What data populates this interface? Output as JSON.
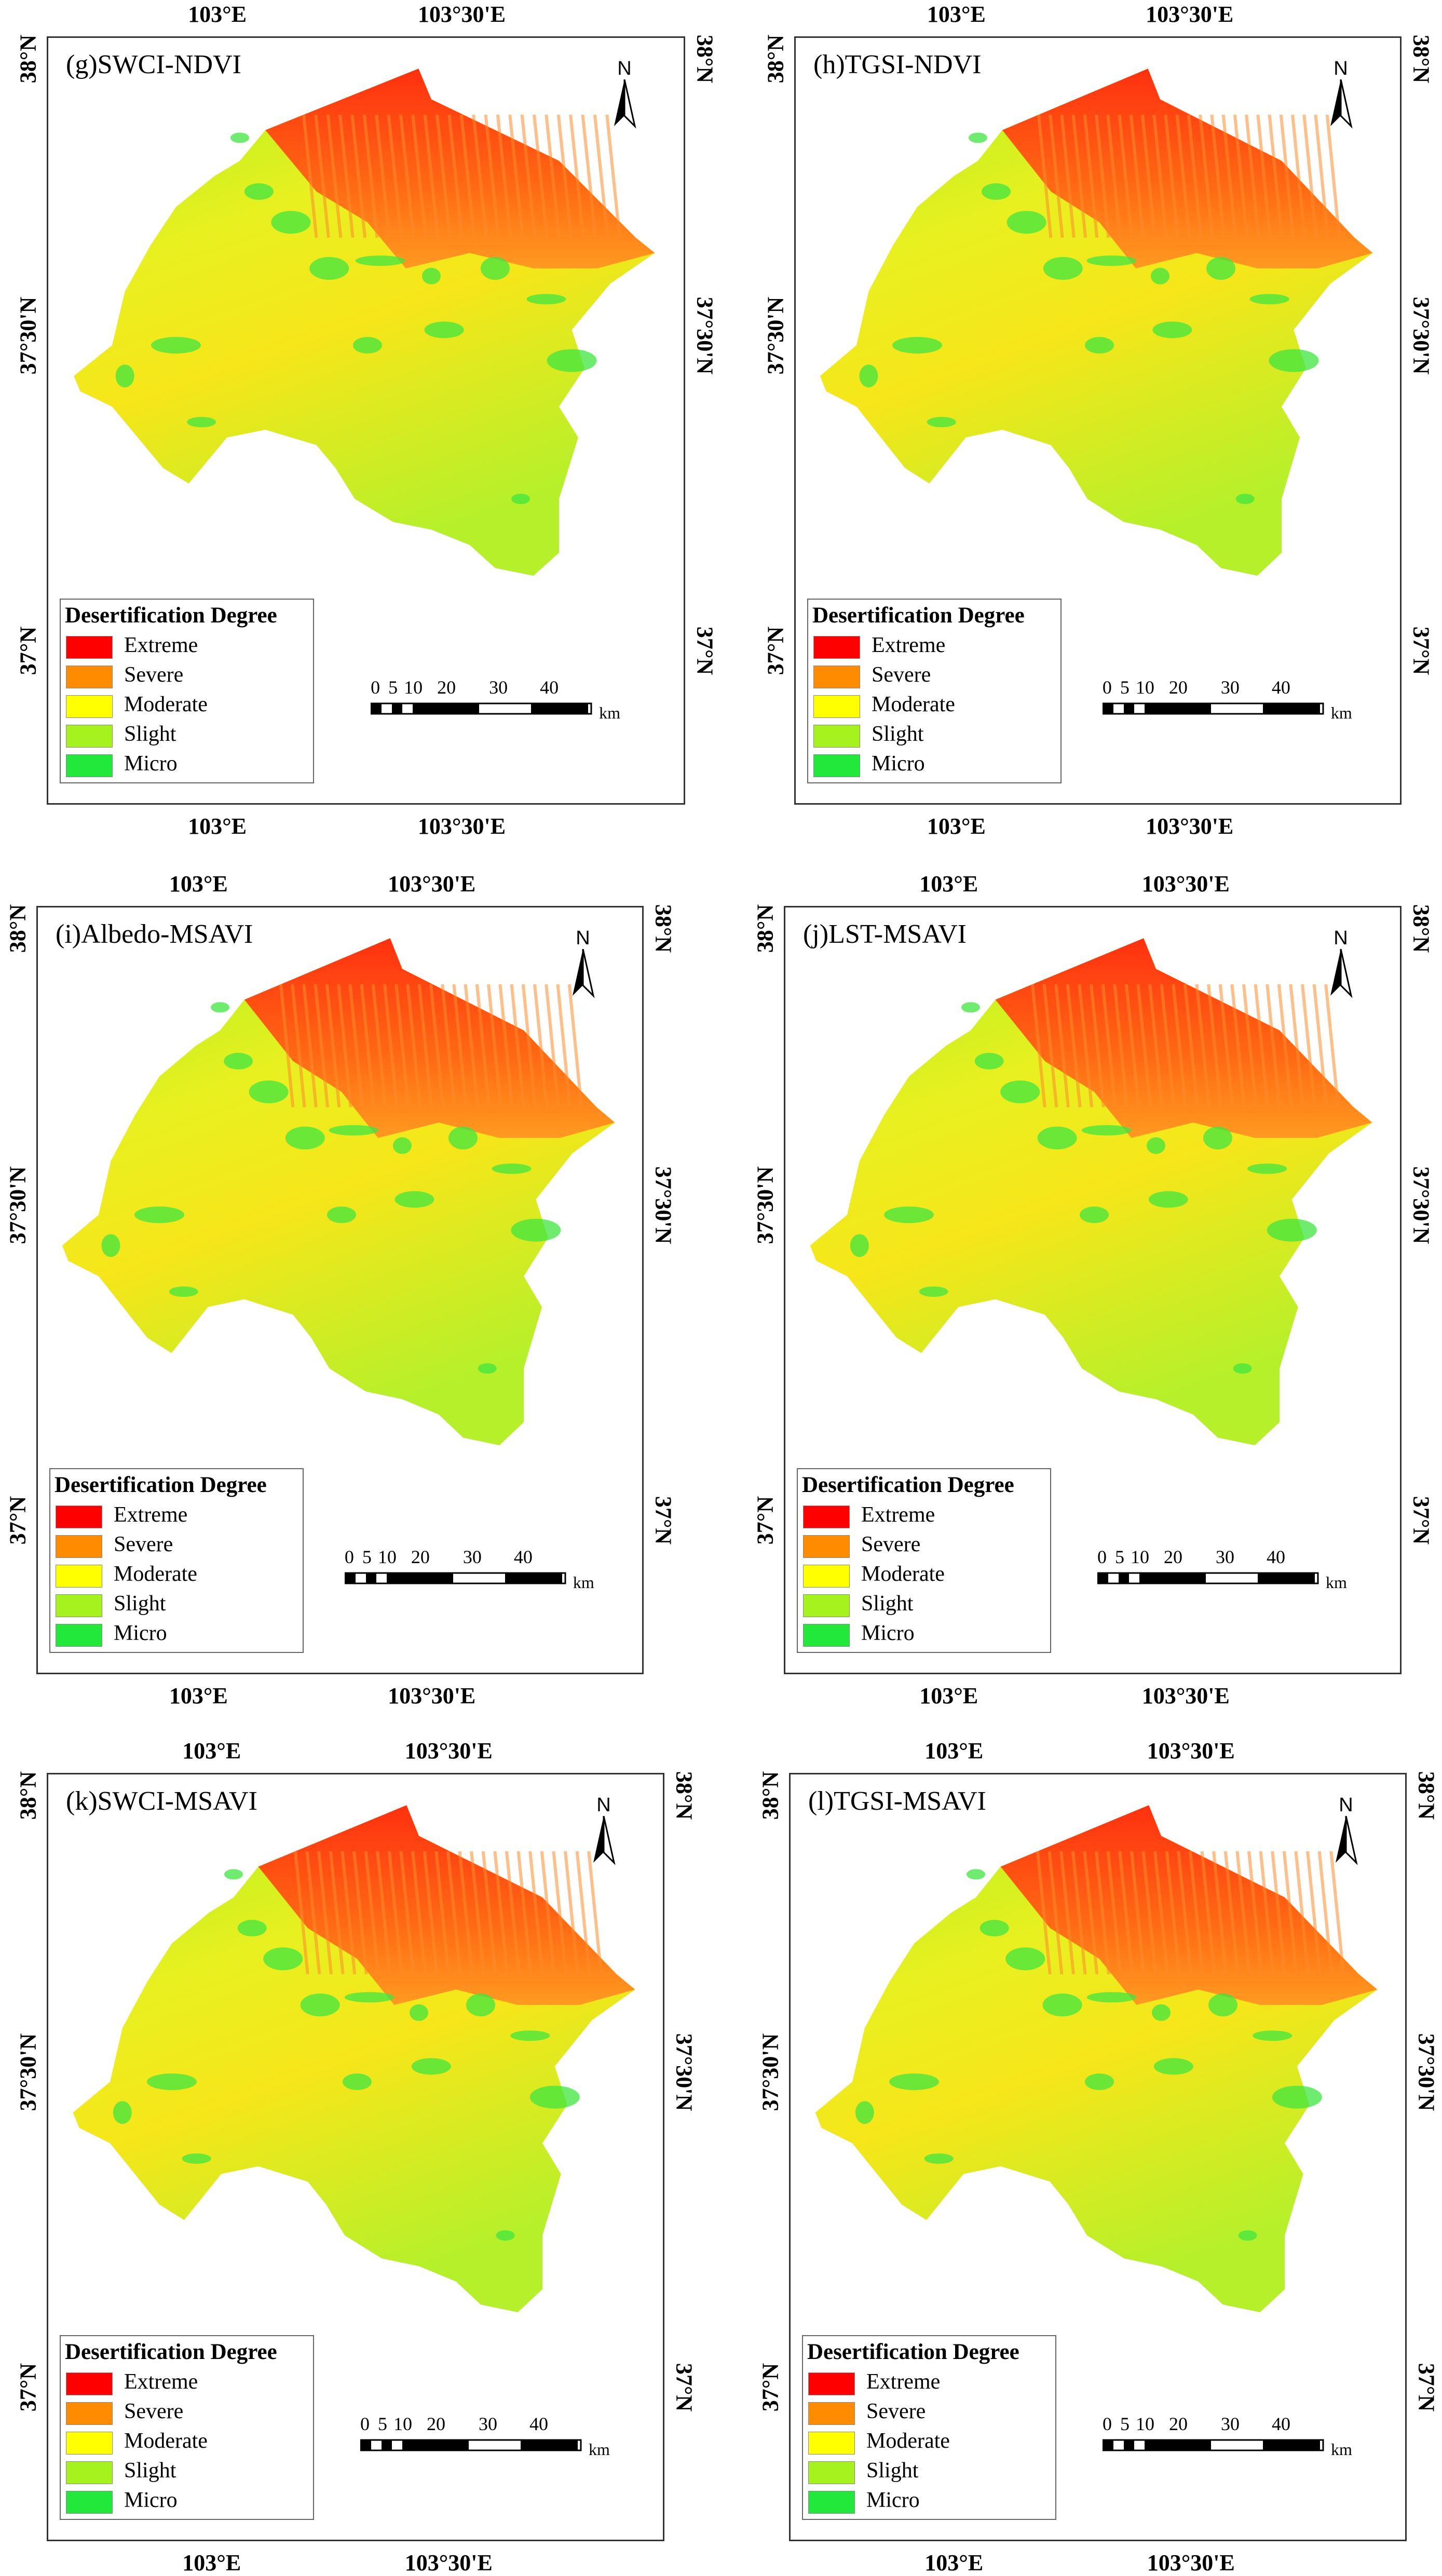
{
  "map_common": {
    "lon_labels": [
      "103°E",
      "103°30'E"
    ],
    "lat_labels": [
      "38°N",
      "37°30'N",
      "37°N"
    ],
    "north_label": "N",
    "legend_title": "Desertification Degree",
    "legend_items": [
      {
        "label": "Extreme",
        "color": "#ff0000"
      },
      {
        "label": "Severe",
        "color": "#ff8c00"
      },
      {
        "label": "Moderate",
        "color": "#ffff00"
      },
      {
        "label": "Slight",
        "color": "#a6f21e"
      },
      {
        "label": "Micro",
        "color": "#22e83c"
      }
    ],
    "scale_labels": [
      "0",
      "5",
      "10",
      "20",
      "30",
      "40"
    ],
    "scale_unit": "km"
  },
  "panels": [
    {
      "title": "(g)SWCI-NDVI"
    },
    {
      "title": "(h)TGSI-NDVI"
    },
    {
      "title": "(i)Albedo-MSAVI"
    },
    {
      "title": "(j)LST-MSAVI"
    },
    {
      "title": "(k)SWCI-MSAVI"
    },
    {
      "title": "(l)TGSI-MSAVI"
    }
  ]
}
